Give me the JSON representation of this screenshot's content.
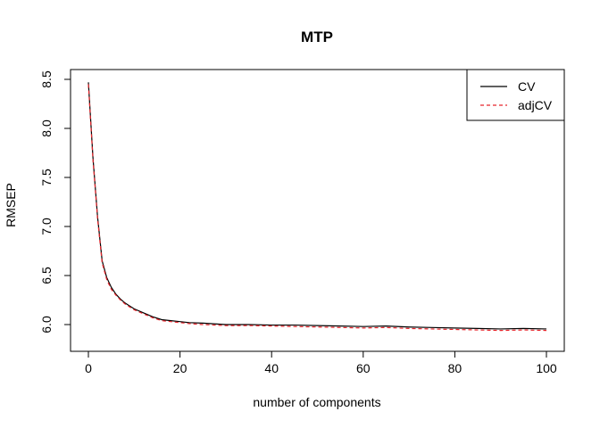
{
  "chart_data": {
    "type": "line",
    "title": "MTP",
    "xlabel": "number of components",
    "ylabel": "RMSEP",
    "xlim": [
      0,
      100
    ],
    "ylim": [
      5.95,
      8.5
    ],
    "x_ticks": [
      0,
      20,
      40,
      60,
      80,
      100
    ],
    "y_ticks": [
      6.0,
      6.5,
      7.0,
      7.5,
      8.0,
      8.5
    ],
    "grid": false,
    "legend_position": "top-right",
    "series": [
      {
        "name": "CV",
        "color": "#000000",
        "style": "solid",
        "points": [
          [
            0,
            8.47
          ],
          [
            1,
            7.7
          ],
          [
            2,
            7.1
          ],
          [
            3,
            6.65
          ],
          [
            4,
            6.48
          ],
          [
            5,
            6.38
          ],
          [
            6,
            6.31
          ],
          [
            7,
            6.26
          ],
          [
            8,
            6.22
          ],
          [
            9,
            6.19
          ],
          [
            10,
            6.16
          ],
          [
            12,
            6.12
          ],
          [
            14,
            6.08
          ],
          [
            16,
            6.05
          ],
          [
            18,
            6.04
          ],
          [
            20,
            6.03
          ],
          [
            22,
            6.02
          ],
          [
            25,
            6.015
          ],
          [
            30,
            6.0
          ],
          [
            35,
            6.0
          ],
          [
            40,
            5.995
          ],
          [
            45,
            5.995
          ],
          [
            50,
            5.99
          ],
          [
            55,
            5.985
          ],
          [
            60,
            5.98
          ],
          [
            65,
            5.985
          ],
          [
            70,
            5.975
          ],
          [
            75,
            5.97
          ],
          [
            80,
            5.965
          ],
          [
            85,
            5.96
          ],
          [
            90,
            5.955
          ],
          [
            95,
            5.96
          ],
          [
            100,
            5.955
          ]
        ]
      },
      {
        "name": "adjCV",
        "color": "#e8252b",
        "style": "dashed",
        "points": [
          [
            0,
            8.45
          ],
          [
            1,
            7.68
          ],
          [
            2,
            7.08
          ],
          [
            3,
            6.63
          ],
          [
            4,
            6.46
          ],
          [
            5,
            6.36
          ],
          [
            6,
            6.3
          ],
          [
            7,
            6.25
          ],
          [
            8,
            6.21
          ],
          [
            9,
            6.18
          ],
          [
            10,
            6.15
          ],
          [
            12,
            6.11
          ],
          [
            14,
            6.07
          ],
          [
            16,
            6.04
          ],
          [
            18,
            6.03
          ],
          [
            20,
            6.02
          ],
          [
            22,
            6.01
          ],
          [
            25,
            6.0
          ],
          [
            30,
            5.99
          ],
          [
            35,
            5.99
          ],
          [
            40,
            5.985
          ],
          [
            45,
            5.98
          ],
          [
            50,
            5.975
          ],
          [
            55,
            5.97
          ],
          [
            60,
            5.965
          ],
          [
            65,
            5.97
          ],
          [
            70,
            5.96
          ],
          [
            75,
            5.955
          ],
          [
            80,
            5.95
          ],
          [
            85,
            5.945
          ],
          [
            90,
            5.94
          ],
          [
            95,
            5.945
          ],
          [
            100,
            5.94
          ]
        ]
      }
    ]
  }
}
